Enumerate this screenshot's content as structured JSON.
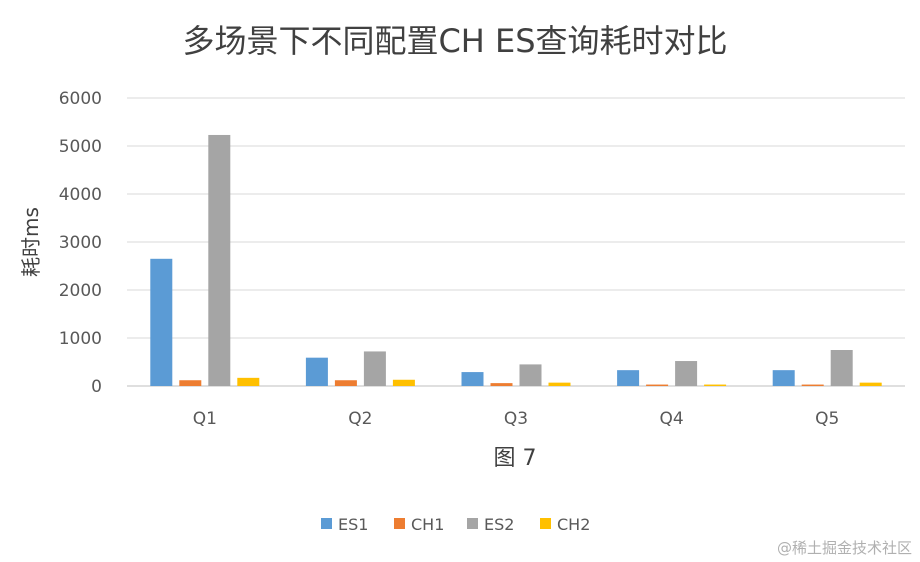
{
  "chart_data": {
    "type": "bar",
    "title": "多场景下不同配置CH ES查询耗时对比",
    "xlabel": "图 7",
    "ylabel": "耗时ms",
    "categories": [
      "Q1",
      "Q2",
      "Q3",
      "Q4",
      "Q5"
    ],
    "series": [
      {
        "name": "ES1",
        "color": "#5B9BD5",
        "values": [
          2650,
          590,
          290,
          330,
          330
        ]
      },
      {
        "name": "CH1",
        "color": "#ED7D31",
        "values": [
          120,
          120,
          60,
          30,
          30
        ]
      },
      {
        "name": "ES2",
        "color": "#A5A5A5",
        "values": [
          5230,
          720,
          450,
          520,
          750
        ]
      },
      {
        "name": "CH2",
        "color": "#FFC000",
        "values": [
          170,
          130,
          70,
          30,
          70
        ]
      }
    ],
    "ylim": [
      0,
      6000
    ],
    "yticks": [
      0,
      1000,
      2000,
      3000,
      4000,
      5000,
      6000
    ],
    "grid": true,
    "legend_position": "bottom"
  },
  "watermark": "@稀土掘金技术社区"
}
